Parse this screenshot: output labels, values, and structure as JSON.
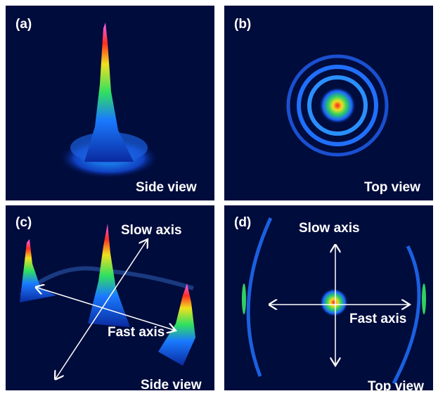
{
  "panels": [
    {
      "label": "(a)",
      "caption": "Side view"
    },
    {
      "label": "(b)",
      "caption": "Top view"
    },
    {
      "label": "(c)",
      "caption": "Side view",
      "axes": [
        "Slow axis",
        "Fast axis"
      ]
    },
    {
      "label": "(d)",
      "caption": "Top view",
      "axes": [
        "Slow axis",
        "Fast axis"
      ]
    }
  ]
}
